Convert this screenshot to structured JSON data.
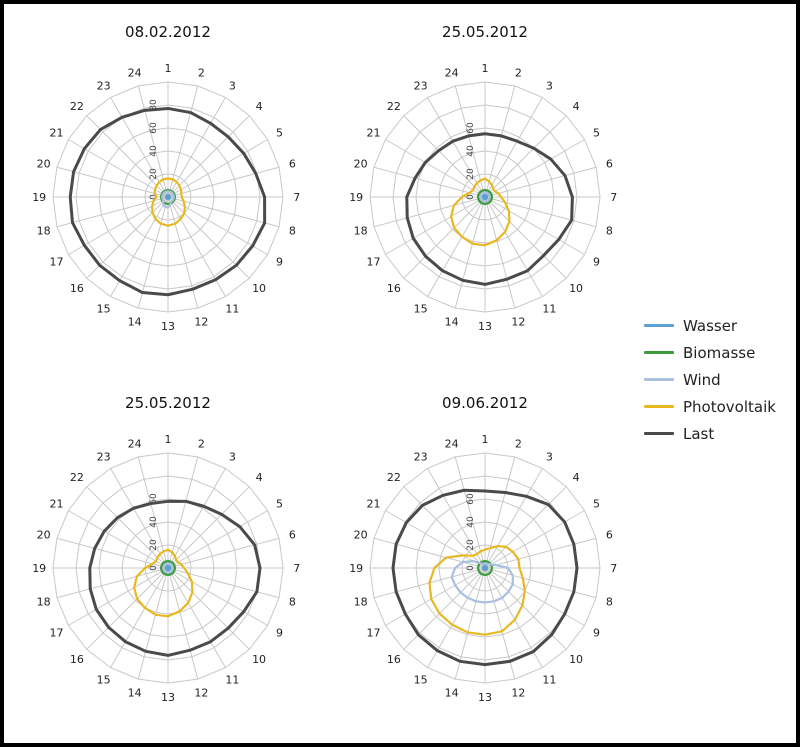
{
  "chart_data": [
    {
      "type": "radar",
      "title": "08.02.2012",
      "categories": [
        "1",
        "2",
        "3",
        "4",
        "5",
        "6",
        "7",
        "8",
        "9",
        "10",
        "11",
        "12",
        "13",
        "14",
        "15",
        "16",
        "17",
        "18",
        "19",
        "20",
        "21",
        "22",
        "23",
        "24"
      ],
      "r_ticks": [
        0,
        20,
        40,
        60,
        80
      ],
      "rlim": [
        0,
        100
      ],
      "series": [
        {
          "name": "Wasser",
          "values": [
            1.5,
            1.5,
            1.5,
            1.5,
            1.5,
            1.5,
            1.5,
            1.5,
            1.5,
            1.5,
            1.5,
            1.5,
            1.5,
            1.5,
            1.5,
            1.5,
            1.5,
            1.5,
            1.5,
            1.5,
            1.5,
            1.5,
            1.5,
            1.5
          ]
        },
        {
          "name": "Biomasse",
          "values": [
            6,
            6,
            6,
            6,
            6,
            6,
            6,
            6,
            6,
            6,
            6,
            6,
            6,
            6,
            6,
            6,
            6,
            6,
            6,
            6,
            6,
            6,
            6,
            6
          ]
        },
        {
          "name": "Wind",
          "values": [
            5,
            5,
            5,
            5,
            5,
            5,
            5,
            5,
            5,
            5,
            5,
            7,
            9,
            9,
            8,
            6,
            5,
            5,
            5,
            5,
            5,
            5,
            5,
            5
          ]
        },
        {
          "name": "Photovoltaik",
          "values": [
            16,
            16,
            15,
            14,
            13,
            12,
            12,
            14,
            17,
            20,
            22,
            24,
            25,
            24,
            22,
            19,
            16,
            13,
            10,
            12,
            13,
            14,
            15,
            16
          ]
        },
        {
          "name": "Last",
          "values": [
            77,
            76,
            74,
            74,
            76,
            79,
            84,
            87,
            85,
            84,
            83,
            83,
            85,
            86,
            84,
            84,
            84,
            86,
            85,
            85,
            84,
            83,
            80,
            78
          ]
        }
      ]
    },
    {
      "type": "radar",
      "title": "25.05.2012",
      "categories": [
        "1",
        "2",
        "3",
        "4",
        "5",
        "6",
        "7",
        "8",
        "9",
        "10",
        "11",
        "12",
        "13",
        "14",
        "15",
        "16",
        "17",
        "18",
        "19",
        "20",
        "21",
        "22",
        "23",
        "24"
      ],
      "r_ticks": [
        0,
        20,
        40,
        60
      ],
      "rlim": [
        0,
        100
      ],
      "series": [
        {
          "name": "Wasser",
          "values": [
            1.5,
            1.5,
            1.5,
            1.5,
            1.5,
            1.5,
            1.5,
            1.5,
            1.5,
            1.5,
            1.5,
            1.5,
            1.5,
            1.5,
            1.5,
            1.5,
            1.5,
            1.5,
            1.5,
            1.5,
            1.5,
            1.5,
            1.5,
            1.5
          ]
        },
        {
          "name": "Biomasse",
          "values": [
            6,
            6,
            6,
            6,
            6,
            6,
            6,
            6,
            6,
            6,
            6,
            6,
            6,
            6,
            6,
            6,
            6,
            6,
            6,
            6,
            6,
            6,
            6,
            6
          ]
        },
        {
          "name": "Wind",
          "values": [
            4,
            4,
            4,
            4,
            4,
            4,
            4,
            4,
            4,
            4,
            4,
            4,
            4,
            4,
            4,
            4,
            4,
            4,
            4,
            4,
            4,
            4,
            4,
            4
          ]
        },
        {
          "name": "Photovoltaik",
          "values": [
            16,
            14,
            12,
            10,
            10,
            12,
            14,
            18,
            24,
            30,
            35,
            39,
            42,
            42,
            40,
            38,
            34,
            28,
            20,
            14,
            12,
            13,
            14,
            15
          ]
        },
        {
          "name": "Last",
          "values": [
            55,
            55,
            56,
            60,
            66,
            72,
            76,
            78,
            74,
            72,
            74,
            74,
            76,
            75,
            74,
            73,
            72,
            70,
            68,
            63,
            60,
            57,
            56,
            55
          ]
        }
      ]
    },
    {
      "type": "radar",
      "title": "25.05.2012",
      "categories": [
        "1",
        "2",
        "3",
        "4",
        "5",
        "6",
        "7",
        "8",
        "9",
        "10",
        "11",
        "12",
        "13",
        "14",
        "15",
        "16",
        "17",
        "18",
        "19",
        "20",
        "21",
        "22",
        "23",
        "24"
      ],
      "r_ticks": [
        0,
        20,
        40,
        60
      ],
      "rlim": [
        0,
        100
      ],
      "series": [
        {
          "name": "Wasser",
          "values": [
            1.5,
            1.5,
            1.5,
            1.5,
            1.5,
            1.5,
            1.5,
            1.5,
            1.5,
            1.5,
            1.5,
            1.5,
            1.5,
            1.5,
            1.5,
            1.5,
            1.5,
            1.5,
            1.5,
            1.5,
            1.5,
            1.5,
            1.5,
            1.5
          ]
        },
        {
          "name": "Biomasse",
          "values": [
            6,
            6,
            6,
            6,
            6,
            6,
            6,
            6,
            6,
            6,
            6,
            6,
            6,
            6,
            6,
            6,
            6,
            6,
            6,
            6,
            6,
            6,
            6,
            6
          ]
        },
        {
          "name": "Wind",
          "values": [
            4,
            4,
            4,
            4,
            4,
            4,
            4,
            4,
            4,
            4,
            4,
            4,
            4,
            4,
            4,
            4,
            4,
            4,
            4,
            4,
            4,
            4,
            4,
            4
          ]
        },
        {
          "name": "Photovoltaik",
          "values": [
            16,
            14,
            12,
            10,
            10,
            12,
            14,
            18,
            24,
            30,
            35,
            39,
            42,
            42,
            40,
            38,
            34,
            28,
            20,
            14,
            12,
            13,
            14,
            15
          ]
        },
        {
          "name": "Last",
          "values": [
            58,
            60,
            62,
            66,
            72,
            78,
            80,
            80,
            76,
            74,
            74,
            74,
            76,
            75,
            74,
            73,
            72,
            70,
            68,
            66,
            64,
            62,
            60,
            58
          ]
        }
      ]
    },
    {
      "type": "radar",
      "title": "09.06.2012",
      "categories": [
        "1",
        "2",
        "3",
        "4",
        "5",
        "6",
        "7",
        "8",
        "9",
        "10",
        "11",
        "12",
        "13",
        "14",
        "15",
        "16",
        "17",
        "18",
        "19",
        "20",
        "21",
        "22",
        "23",
        "24"
      ],
      "r_ticks": [
        0,
        20,
        40,
        60
      ],
      "rlim": [
        0,
        100
      ],
      "series": [
        {
          "name": "Wasser",
          "values": [
            1.5,
            1.5,
            1.5,
            1.5,
            1.5,
            1.5,
            1.5,
            1.5,
            1.5,
            1.5,
            1.5,
            1.5,
            1.5,
            1.5,
            1.5,
            1.5,
            1.5,
            1.5,
            1.5,
            1.5,
            1.5,
            1.5,
            1.5,
            1.5
          ]
        },
        {
          "name": "Biomasse",
          "values": [
            6,
            6,
            6,
            6,
            6,
            6,
            6,
            6,
            6,
            6,
            6,
            6,
            6,
            6,
            6,
            6,
            6,
            6,
            6,
            6,
            6,
            6,
            6,
            6
          ]
        },
        {
          "name": "Wind",
          "values": [
            4,
            4,
            4,
            5,
            6,
            10,
            20,
            25,
            28,
            29,
            30,
            30,
            30,
            30,
            30,
            30,
            30,
            30,
            26,
            20,
            12,
            6,
            4,
            4
          ]
        },
        {
          "name": "Photovoltaik",
          "values": [
            16,
            18,
            22,
            26,
            28,
            30,
            30,
            34,
            40,
            46,
            52,
            57,
            58,
            58,
            57,
            56,
            54,
            50,
            44,
            35,
            22,
            15,
            14,
            15
          ]
        },
        {
          "name": "Last",
          "values": [
            67,
            68,
            72,
            78,
            80,
            80,
            80,
            80,
            80,
            82,
            84,
            84,
            84,
            84,
            83,
            82,
            80,
            80,
            80,
            80,
            79,
            77,
            73,
            70
          ]
        }
      ]
    }
  ],
  "legend": [
    {
      "name": "Wasser",
      "color": "#5aa0d0"
    },
    {
      "name": "Biomasse",
      "color": "#3d9a3d"
    },
    {
      "name": "Wind",
      "color": "#a8bfe0"
    },
    {
      "name": "Photovoltaik",
      "color": "#e8b820"
    },
    {
      "name": "Last",
      "color": "#4a4a4a"
    }
  ],
  "colors": {
    "Wasser": "#5aa0d0",
    "Biomasse": "#3d9a3d",
    "Wind": "#a8bfe0",
    "Photovoltaik": "#e8b820",
    "Last": "#4a4a4a"
  }
}
